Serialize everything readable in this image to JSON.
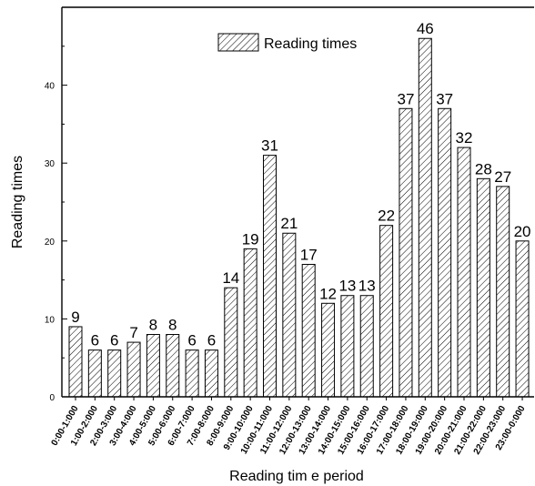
{
  "chart_data": {
    "type": "bar",
    "xlabel": "Reading tim e period",
    "ylabel": "Reading times",
    "ylim": [
      0,
      50
    ],
    "yticks": [
      0,
      10,
      20,
      30,
      40
    ],
    "grid": false,
    "legend": {
      "position": "top-center",
      "entries": [
        "Reading times"
      ]
    },
    "categories": [
      "0:00-1:000",
      "1:00-2:000",
      "2:00-3:000",
      "3:00-4:000",
      "4:00-5:000",
      "5:00-6:000",
      "6:00-7:000",
      "7:00-8:000",
      "8:00-9:000",
      "9:00-10:000",
      "10:00-11:000",
      "11:00-12:000",
      "12:00-13:000",
      "13:00-14:000",
      "14:00-15:000",
      "15:00-16:000",
      "16:00-17:000",
      "17:00-18:000",
      "18:00-19:000",
      "19:00-20:000",
      "20:00-21:000",
      "21:00-22:000",
      "22:00-23:000",
      "23:00-0:000"
    ],
    "series": [
      {
        "name": "Reading times",
        "values": [
          9,
          6,
          6,
          7,
          8,
          8,
          6,
          6,
          14,
          19,
          31,
          21,
          17,
          12,
          13,
          13,
          22,
          37,
          46,
          37,
          32,
          28,
          27,
          20
        ]
      }
    ],
    "pattern": "diagonal-hatch",
    "bar_fill": "#ffffff",
    "bar_stroke": "#000000"
  }
}
